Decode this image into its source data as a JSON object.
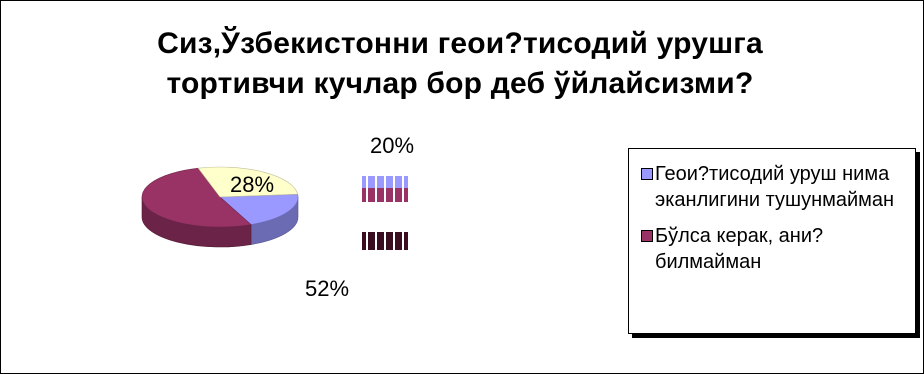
{
  "chart_data": {
    "type": "pie",
    "title": "Сиз,Ўзбекистонни геои?тисодий урушга тортивчи кучлар бор деб ўйлайсизми?",
    "title_lines": [
      "Сиз,Ўзбекистонни геои?тисодий урушга",
      "тортивчи кучлар бор деб ўйлайсизми?"
    ],
    "categories": [
      "Геои?тисодий уруш нима эканлигини тушунмайман",
      "Бўлса керак, ани? билмайман",
      ""
    ],
    "values": [
      20,
      52,
      28
    ],
    "value_labels": [
      "20%",
      "52%",
      "28%"
    ],
    "colors": [
      "#9999ff",
      "#993366",
      "#ffffcc"
    ],
    "legend_position": "right"
  },
  "legend": {
    "items": [
      {
        "label": "Геои?тисодий уруш нима эканлигини тушунмайман",
        "color": "#9999ff"
      },
      {
        "label": "Бўлса керак, ани? билмайман",
        "color": "#993366"
      }
    ]
  }
}
